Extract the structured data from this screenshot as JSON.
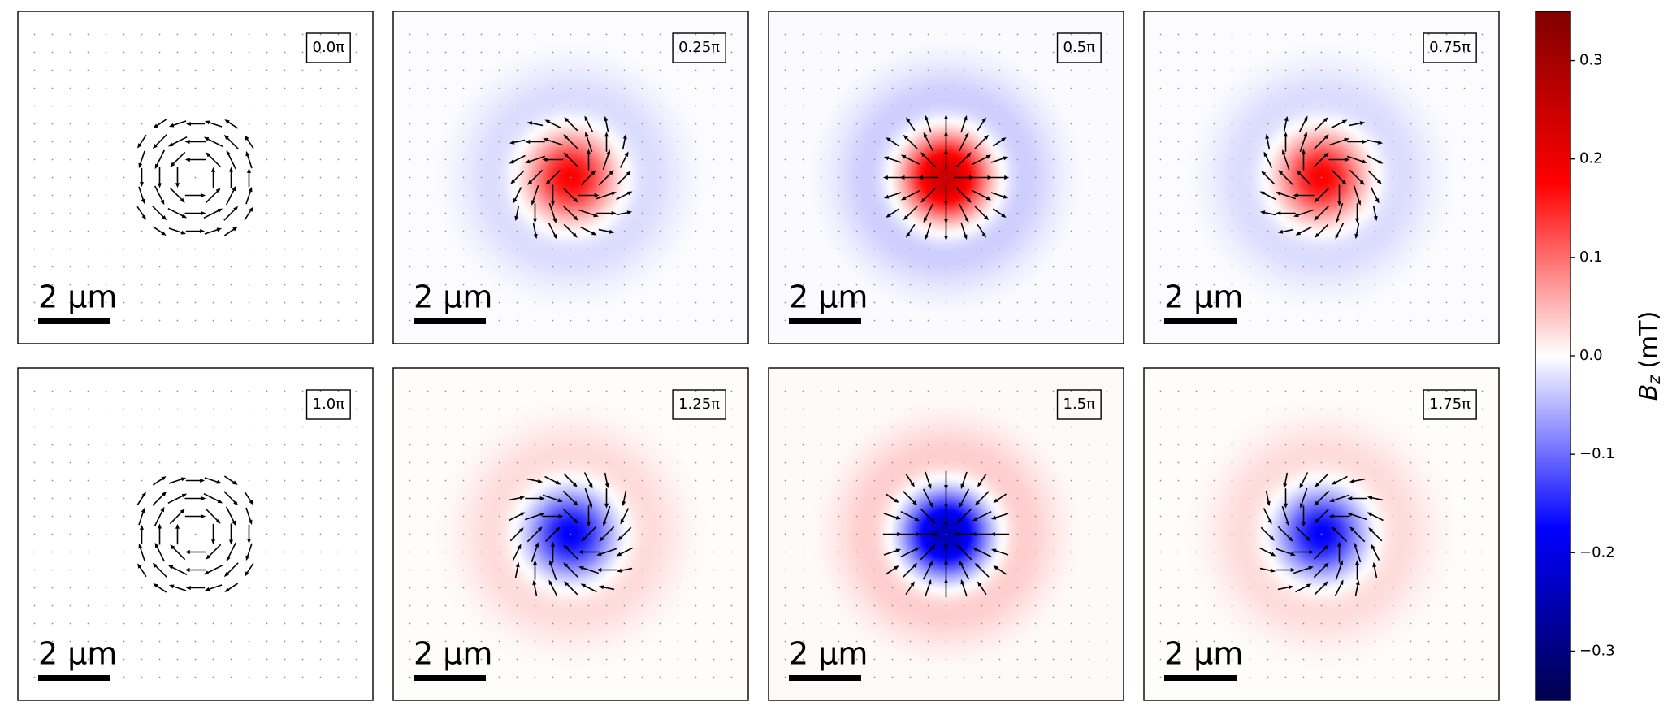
{
  "chart_data": {
    "type": "vector-field",
    "panels": [
      {
        "value": 0.0,
        "label": "0.0π"
      },
      {
        "value": 0.25,
        "label": "0.25π"
      },
      {
        "value": 0.5,
        "label": "0.5π"
      },
      {
        "value": 0.75,
        "label": "0.75π"
      },
      {
        "value": 1.0,
        "label": "1.0π"
      },
      {
        "value": 1.25,
        "label": "1.25π"
      },
      {
        "value": 1.5,
        "label": "1.5π"
      },
      {
        "value": 1.75,
        "label": "1.75π"
      }
    ],
    "peak": 0.25,
    "scalebar_label": "2 µm",
    "colorbar": {
      "symbol": "B",
      "subscript": "z",
      "unit": "(mT)",
      "lim": [
        -0.35,
        0.35
      ],
      "ticks": [
        {
          "value": -0.3,
          "label": "−0.3"
        },
        {
          "value": -0.2,
          "label": "−0.2"
        },
        {
          "value": -0.1,
          "label": "−0.1"
        },
        {
          "value": 0,
          "label": "0.0"
        },
        0.1,
        0.2,
        0.3
      ],
      "colors": [
        "#00004d",
        "#0000ff",
        "#ffffff",
        "#ff0000",
        "#800000"
      ]
    }
  }
}
